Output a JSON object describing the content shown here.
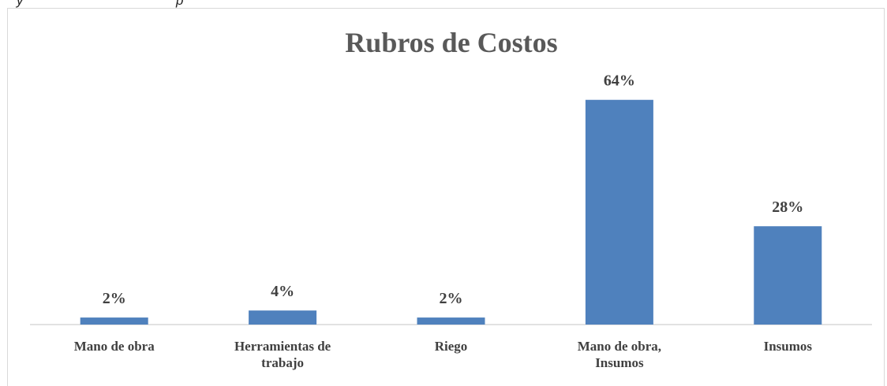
{
  "caption_fragment": "    y                                         p",
  "chart_data": {
    "type": "bar",
    "title": "Rubros de Costos",
    "categories": [
      [
        "Mano de obra"
      ],
      [
        "Herramientas de",
        "trabajo"
      ],
      [
        "Riego"
      ],
      [
        "Mano de obra,",
        "Insumos"
      ],
      [
        "Insumos"
      ]
    ],
    "values": [
      2,
      4,
      2,
      64,
      28
    ],
    "data_labels": [
      "2%",
      "4%",
      "2%",
      "64%",
      "28%"
    ],
    "unit": "%",
    "ylim": [
      0,
      70
    ],
    "grid": false,
    "legend": "none",
    "bar_color": "#4f81bd",
    "axis_color": "#d9d9d9"
  }
}
